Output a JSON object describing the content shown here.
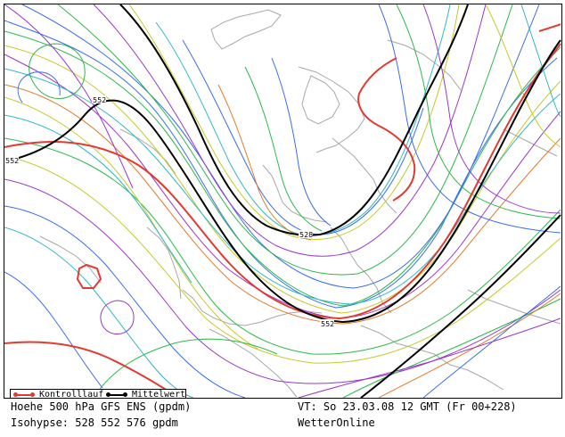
{
  "legend": {
    "control_run": "Kontrolllauf",
    "mean": "Mittelwert"
  },
  "footer": {
    "line1_left": "Hoehe 500 hPa GFS ENS (gpdm)",
    "line2_left": "Isohypse: 528 552 576 gpdm",
    "line1_right": "VT: So 23.03.08 12 GMT (Fr 00+228)",
    "line2_right": "WetterOnline"
  },
  "contour_labels": [
    "552",
    "552",
    "528",
    "552"
  ],
  "colors": {
    "control_run": "#e23a30",
    "mean": "#000000",
    "coastline": "#a0a0a0"
  }
}
